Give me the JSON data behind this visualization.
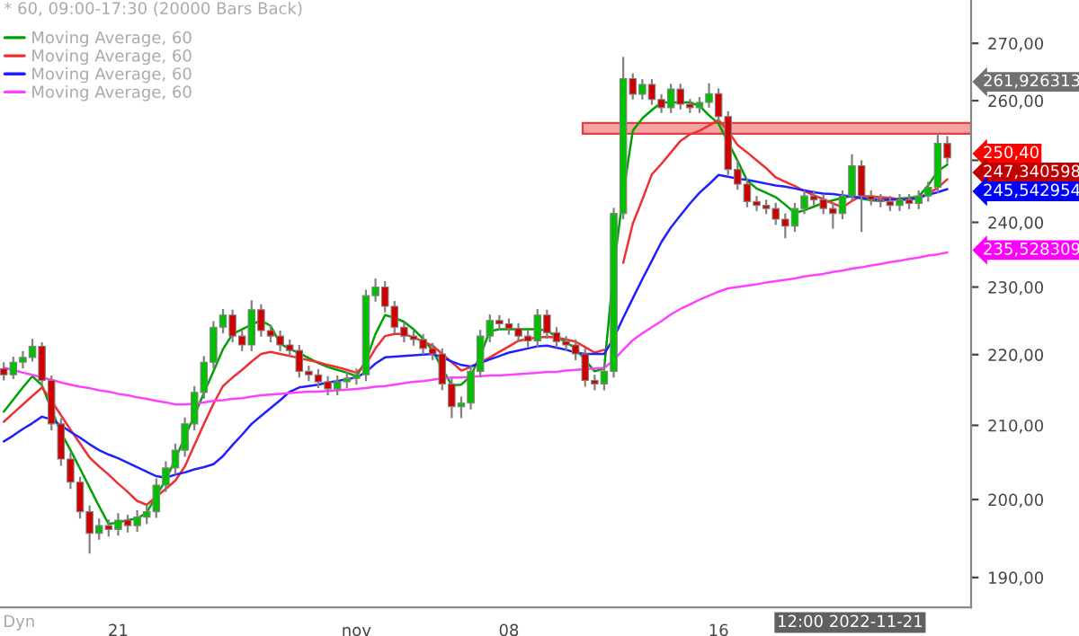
{
  "chart_data": {
    "type": "candlestick",
    "title": "* 60, 09:00-17:30 (20000 Bars Back)",
    "categories": [
      null,
      null,
      null,
      null,
      null,
      null,
      null,
      null,
      null,
      null,
      null,
      null,
      "21",
      null,
      null,
      null,
      null,
      null,
      null,
      null,
      null,
      null,
      null,
      null,
      null,
      null,
      null,
      null,
      null,
      null,
      null,
      null,
      null,
      null,
      null,
      null,
      null,
      "nov",
      null,
      null,
      null,
      null,
      null,
      null,
      null,
      null,
      null,
      null,
      null,
      null,
      null,
      null,
      null,
      "08",
      null,
      null,
      null,
      null,
      null,
      null,
      null,
      null,
      null,
      null,
      null,
      null,
      null,
      null,
      null,
      null,
      null,
      null,
      null,
      null,
      null,
      "16",
      null,
      null,
      null,
      null,
      null,
      null,
      null,
      null,
      null,
      null,
      null,
      null,
      null,
      null,
      null,
      null,
      null,
      null,
      null,
      null,
      null,
      null,
      null,
      null
    ],
    "ohlc": [
      [
        218.0,
        218.9,
        216.3,
        217.1
      ],
      [
        217.1,
        219.7,
        216.5,
        218.9
      ],
      [
        218.9,
        220.5,
        218.0,
        219.6
      ],
      [
        219.6,
        222.3,
        219.0,
        221.2
      ],
      [
        221.2,
        221.8,
        215.5,
        216.3
      ],
      [
        216.3,
        217.0,
        209.3,
        210.2
      ],
      [
        210.2,
        211.0,
        204.5,
        205.4
      ],
      [
        205.4,
        206.3,
        201.4,
        202.3
      ],
      [
        202.3,
        203.0,
        197.5,
        198.4
      ],
      [
        198.4,
        199.2,
        193.0,
        195.6
      ],
      [
        195.6,
        197.5,
        194.8,
        196.6
      ],
      [
        196.6,
        197.4,
        195.2,
        196.1
      ],
      [
        196.1,
        198.2,
        195.3,
        197.3
      ],
      [
        197.3,
        198.0,
        195.7,
        196.6
      ],
      [
        196.6,
        198.6,
        195.8,
        197.7
      ],
      [
        197.7,
        199.3,
        196.8,
        198.4
      ],
      [
        198.4,
        202.8,
        197.6,
        201.9
      ],
      [
        201.9,
        205.1,
        201.0,
        204.2
      ],
      [
        204.2,
        207.5,
        203.3,
        206.6
      ],
      [
        206.6,
        211.1,
        205.7,
        210.2
      ],
      [
        210.2,
        215.5,
        209.3,
        214.6
      ],
      [
        214.6,
        219.8,
        213.7,
        218.9
      ],
      [
        218.9,
        224.9,
        218.0,
        224.0
      ],
      [
        224.0,
        226.7,
        223.1,
        225.8
      ],
      [
        225.8,
        226.6,
        221.8,
        222.7
      ],
      [
        222.7,
        223.5,
        220.5,
        221.4
      ],
      [
        221.4,
        228.0,
        220.5,
        226.6
      ],
      [
        226.6,
        227.4,
        222.6,
        223.5
      ],
      [
        223.5,
        224.3,
        221.8,
        222.7
      ],
      [
        222.7,
        223.5,
        220.5,
        221.4
      ],
      [
        221.4,
        222.2,
        219.7,
        220.6
      ],
      [
        220.6,
        221.4,
        216.7,
        217.6
      ],
      [
        217.6,
        218.4,
        216.2,
        217.1
      ],
      [
        217.1,
        217.9,
        215.2,
        216.1
      ],
      [
        216.1,
        216.9,
        214.2,
        215.1
      ],
      [
        215.1,
        217.0,
        214.2,
        216.1
      ],
      [
        216.1,
        217.5,
        215.2,
        216.6
      ],
      [
        216.6,
        218.0,
        215.7,
        217.1
      ],
      [
        217.1,
        229.6,
        216.2,
        228.7
      ],
      [
        228.7,
        231.3,
        227.8,
        230.0
      ],
      [
        230.0,
        230.9,
        226.2,
        227.1
      ],
      [
        227.1,
        227.9,
        223.1,
        224.0
      ],
      [
        224.0,
        224.8,
        221.8,
        222.7
      ],
      [
        222.7,
        223.5,
        221.3,
        222.2
      ],
      [
        222.2,
        223.0,
        220.0,
        220.9
      ],
      [
        220.9,
        221.7,
        219.2,
        220.1
      ],
      [
        220.1,
        220.9,
        214.9,
        215.8
      ],
      [
        215.8,
        216.6,
        211.0,
        212.6
      ],
      [
        212.6,
        214.0,
        211.0,
        213.1
      ],
      [
        213.1,
        218.5,
        212.2,
        217.6
      ],
      [
        217.6,
        223.6,
        216.7,
        222.7
      ],
      [
        222.7,
        225.9,
        221.8,
        225.0
      ],
      [
        225.0,
        225.8,
        223.6,
        224.5
      ],
      [
        224.5,
        225.3,
        222.9,
        223.8
      ],
      [
        223.8,
        224.6,
        221.8,
        222.7
      ],
      [
        222.7,
        223.5,
        221.1,
        222.0
      ],
      [
        222.0,
        226.7,
        221.1,
        225.8
      ],
      [
        225.8,
        226.6,
        222.3,
        223.2
      ],
      [
        223.2,
        224.0,
        221.0,
        221.9
      ],
      [
        221.9,
        222.7,
        220.5,
        221.4
      ],
      [
        221.4,
        222.2,
        219.2,
        220.1
      ],
      [
        220.1,
        220.9,
        215.4,
        216.3
      ],
      [
        216.3,
        217.1,
        214.9,
        215.8
      ],
      [
        215.8,
        218.5,
        214.9,
        217.6
      ],
      [
        217.6,
        242.3,
        216.7,
        241.4
      ],
      [
        241.4,
        267.6,
        240.5,
        263.8
      ],
      [
        263.8,
        264.7,
        260.2,
        261.1
      ],
      [
        261.1,
        263.7,
        260.2,
        262.8
      ],
      [
        262.8,
        263.7,
        259.3,
        260.2
      ],
      [
        260.2,
        261.1,
        257.9,
        258.8
      ],
      [
        258.8,
        262.9,
        257.9,
        262.0
      ],
      [
        262.0,
        262.9,
        258.5,
        259.4
      ],
      [
        259.4,
        260.3,
        257.9,
        258.8
      ],
      [
        258.8,
        260.6,
        257.9,
        259.7
      ],
      [
        259.7,
        263.0,
        258.8,
        261.2
      ],
      [
        261.2,
        262.1,
        256.4,
        257.3
      ],
      [
        257.3,
        258.2,
        247.6,
        248.5
      ],
      [
        248.5,
        250.0,
        245.2,
        246.1
      ],
      [
        246.1,
        247.0,
        242.4,
        243.3
      ],
      [
        243.3,
        244.2,
        241.8,
        242.7
      ],
      [
        242.7,
        243.6,
        241.3,
        242.2
      ],
      [
        242.2,
        243.1,
        239.6,
        240.5
      ],
      [
        240.5,
        241.4,
        237.5,
        239.4
      ],
      [
        239.4,
        243.1,
        238.5,
        242.2
      ],
      [
        242.2,
        245.1,
        241.3,
        244.2
      ],
      [
        244.2,
        245.1,
        242.7,
        243.6
      ],
      [
        243.6,
        244.5,
        241.3,
        242.2
      ],
      [
        242.2,
        243.1,
        239.0,
        241.4
      ],
      [
        241.4,
        245.1,
        240.5,
        244.2
      ],
      [
        244.2,
        251.0,
        243.3,
        249.1
      ],
      [
        249.1,
        250.0,
        238.5,
        244.2
      ],
      [
        244.2,
        245.1,
        242.7,
        243.6
      ],
      [
        243.6,
        244.5,
        242.4,
        243.3
      ],
      [
        243.3,
        244.2,
        241.8,
        242.7
      ],
      [
        242.7,
        244.5,
        241.8,
        243.6
      ],
      [
        243.6,
        244.5,
        242.1,
        243.0
      ],
      [
        243.0,
        245.1,
        242.1,
        244.2
      ],
      [
        244.2,
        246.5,
        243.3,
        245.6
      ],
      [
        245.6,
        254.5,
        244.7,
        252.8
      ],
      [
        252.8,
        254.0,
        249.5,
        250.4
      ]
    ],
    "series": [
      {
        "type": "line",
        "name": "Moving Average, 60",
        "color": "#00a000",
        "values": [
          211.9,
          213.6,
          215.3,
          216.9,
          215.6,
          212.2,
          209.0,
          206.6,
          204.1,
          201.6,
          199.1,
          196.8,
          197.0,
          197.3,
          197.5,
          198.3,
          200.5,
          202.6,
          205.4,
          208.4,
          211.4,
          214.5,
          217.6,
          220.8,
          223.0,
          223.7,
          224.4,
          225.0,
          224.2,
          221.6,
          220.8,
          220.2,
          219.5,
          218.8,
          218.2,
          217.8,
          217.4,
          216.9,
          219.1,
          223.0,
          225.8,
          225.4,
          224.8,
          223.7,
          222.3,
          220.6,
          218.0,
          215.6,
          215.7,
          216.9,
          219.9,
          223.4,
          223.7,
          223.7,
          223.7,
          223.7,
          223.7,
          223.5,
          222.6,
          221.8,
          220.9,
          219.2,
          217.6,
          218.0,
          232.9,
          244.6,
          254.9,
          257.0,
          258.4,
          259.7,
          259.7,
          259.7,
          259.7,
          259.1,
          257.5,
          256.1,
          253.0,
          249.9,
          246.7,
          245.4,
          244.7,
          244.0,
          242.8,
          241.5,
          241.9,
          242.5,
          243.1,
          243.5,
          243.9,
          244.2,
          243.8,
          243.5,
          243.4,
          243.6,
          243.8,
          243.9,
          244.1,
          245.9,
          248.2,
          249.3
        ]
      },
      {
        "type": "line",
        "name": "Moving Average, 60",
        "color": "#f03030",
        "values": [
          210.5,
          211.7,
          212.9,
          214.1,
          215.3,
          213.4,
          211.4,
          209.4,
          207.5,
          205.6,
          204.4,
          203.3,
          202.1,
          201.0,
          199.8,
          199.3,
          200.4,
          201.4,
          202.5,
          204.4,
          207.3,
          210.2,
          213.0,
          215.5,
          216.7,
          217.8,
          219.0,
          220.1,
          220.4,
          220.1,
          219.8,
          219.5,
          219.2,
          218.9,
          218.5,
          218.2,
          217.8,
          217.4,
          218.6,
          220.9,
          222.7,
          223.0,
          223.0,
          222.5,
          221.9,
          221.3,
          220.1,
          218.9,
          217.7,
          218.2,
          218.9,
          219.6,
          220.4,
          221.2,
          222.0,
          222.3,
          222.5,
          222.6,
          222.5,
          222.2,
          221.9,
          221.1,
          220.3,
          220.7,
          null,
          233.7,
          239.8,
          243.6,
          247.7,
          249.4,
          251.3,
          253.2,
          254.3,
          254.9,
          255.8,
          256.7,
          254.9,
          252.5,
          251.3,
          250.0,
          248.7,
          247.2,
          246.5,
          245.8,
          245.0,
          244.3,
          243.7,
          243.0,
          242.4,
          243.4,
          244.2,
          244.1,
          244.0,
          243.9,
          243.7,
          243.6,
          244.0,
          244.6,
          245.5,
          246.9
        ]
      },
      {
        "type": "line",
        "name": "Moving Average, 60",
        "color": "#2020ff",
        "values": [
          207.8,
          208.6,
          209.5,
          210.3,
          211.2,
          210.8,
          210.0,
          209.1,
          208.3,
          207.4,
          206.6,
          206.0,
          205.5,
          204.9,
          204.3,
          203.7,
          203.1,
          202.9,
          203.3,
          203.6,
          204.0,
          204.3,
          204.7,
          205.8,
          207.3,
          208.7,
          210.2,
          211.3,
          212.4,
          213.5,
          214.7,
          215.3,
          215.5,
          215.7,
          216.0,
          216.2,
          216.5,
          216.7,
          217.5,
          218.7,
          219.6,
          219.7,
          219.8,
          219.9,
          220.0,
          220.1,
          219.6,
          219.0,
          218.5,
          218.3,
          218.8,
          219.3,
          219.8,
          220.3,
          220.6,
          220.9,
          221.2,
          221.3,
          221.0,
          220.7,
          220.3,
          220.1,
          220.1,
          220.1,
          222.4,
          225.4,
          228.3,
          231.2,
          234.0,
          236.9,
          239.2,
          241.1,
          243.0,
          244.7,
          246.1,
          247.6,
          247.3,
          247.0,
          246.8,
          246.5,
          246.2,
          245.9,
          245.7,
          245.4,
          245.1,
          244.8,
          244.6,
          244.5,
          244.3,
          244.1,
          243.9,
          243.7,
          243.6,
          243.6,
          243.6,
          243.6,
          243.9,
          244.4,
          244.8,
          245.3
        ]
      },
      {
        "type": "line",
        "name": "Moving Average, 60",
        "color": "#ff40ff",
        "values": [
          218.1,
          217.8,
          217.4,
          217.1,
          216.7,
          216.4,
          216.0,
          215.7,
          215.4,
          215.2,
          214.9,
          214.7,
          214.4,
          214.2,
          213.9,
          213.7,
          213.4,
          213.2,
          212.9,
          212.9,
          213.0,
          213.2,
          213.4,
          213.5,
          213.7,
          213.8,
          214.0,
          214.2,
          214.3,
          214.4,
          214.5,
          214.6,
          214.7,
          214.7,
          214.8,
          214.9,
          215.0,
          215.1,
          215.2,
          215.4,
          215.5,
          215.7,
          215.9,
          216.1,
          216.2,
          216.4,
          216.6,
          216.7,
          216.7,
          216.8,
          216.9,
          217.0,
          217.0,
          217.1,
          217.2,
          217.3,
          217.4,
          217.5,
          217.5,
          217.7,
          217.8,
          217.9,
          218.0,
          218.1,
          219.2,
          220.7,
          222.1,
          223.1,
          224.0,
          224.9,
          225.9,
          226.7,
          227.4,
          228.1,
          228.7,
          229.3,
          229.8,
          230.0,
          230.2,
          230.4,
          230.7,
          230.9,
          231.1,
          231.3,
          231.6,
          231.8,
          232.0,
          232.3,
          232.5,
          232.8,
          233.0,
          233.3,
          233.5,
          233.8,
          234.0,
          234.3,
          234.5,
          234.8,
          235.0,
          235.3
        ]
      }
    ],
    "log": true,
    "ylim": [
      186.3,
      277.8
    ],
    "yticks": [
      {
        "value": 190,
        "label": "190,00"
      },
      {
        "value": 200,
        "label": "200,00"
      },
      {
        "value": 210,
        "label": "210,00"
      },
      {
        "value": 220,
        "label": "220,00"
      },
      {
        "value": 230,
        "label": "230,00"
      },
      {
        "value": 240,
        "label": "240,00"
      },
      {
        "value": 250,
        "label": null
      },
      {
        "value": 260,
        "label": "260,00"
      },
      {
        "value": 270,
        "label": "270,00"
      }
    ],
    "bands": [
      {
        "axis": "y",
        "from": 254.4,
        "to": 256.2,
        "color": "#f5a3a3"
      }
    ],
    "legend": "top left",
    "annotations": [
      "261,926313",
      "250,40",
      "247,340598",
      "245,542954",
      "235,528309",
      "Dyn",
      "12:00 2022-11-21"
    ]
  }
}
